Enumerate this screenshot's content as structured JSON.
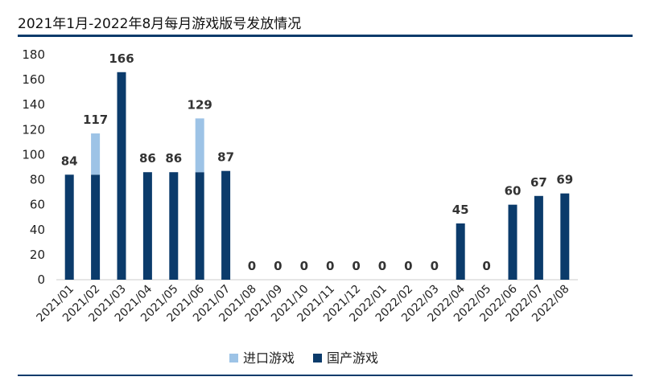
{
  "header": {
    "title": "2021年1月-2022年8月每月游戏版号发放情况"
  },
  "chart_data": {
    "type": "bar",
    "stacked": true,
    "title": "2021年1月-2022年8月每月游戏版号发放情况",
    "categories": [
      "2021/01",
      "2021/02",
      "2021/03",
      "2021/04",
      "2021/05",
      "2021/06",
      "2021/07",
      "2021/08",
      "2021/09",
      "2021/10",
      "2021/11",
      "2021/12",
      "2022/01",
      "2022/02",
      "2022/03",
      "2022/04",
      "2022/05",
      "2022/06",
      "2022/07",
      "2022/08"
    ],
    "series": [
      {
        "name": "国产游戏",
        "color": "#0b3b6b",
        "values": [
          84,
          84,
          166,
          86,
          86,
          86,
          87,
          0,
          0,
          0,
          0,
          0,
          0,
          0,
          0,
          45,
          0,
          60,
          67,
          69
        ]
      },
      {
        "name": "进口游戏",
        "color": "#9dc3e6",
        "values": [
          0,
          33,
          0,
          0,
          0,
          43,
          0,
          0,
          0,
          0,
          0,
          0,
          0,
          0,
          0,
          0,
          0,
          0,
          0,
          0
        ]
      }
    ],
    "totals": [
      "84",
      "117",
      "166",
      "86",
      "86",
      "129",
      "87",
      "0",
      "0",
      "0",
      "0",
      "0",
      "0",
      "0",
      "0",
      "45",
      "0",
      "60",
      "67",
      "69"
    ],
    "yticks": [
      "0",
      "20",
      "40",
      "60",
      "80",
      "100",
      "120",
      "140",
      "160",
      "180"
    ],
    "ylim": [
      0,
      180
    ],
    "xlabel": "",
    "ylabel": "",
    "legend_position": "bottom",
    "legend": [
      {
        "label": "进口游戏",
        "color": "#9dc3e6"
      },
      {
        "label": "国产游戏",
        "color": "#0b3b6b"
      }
    ]
  }
}
